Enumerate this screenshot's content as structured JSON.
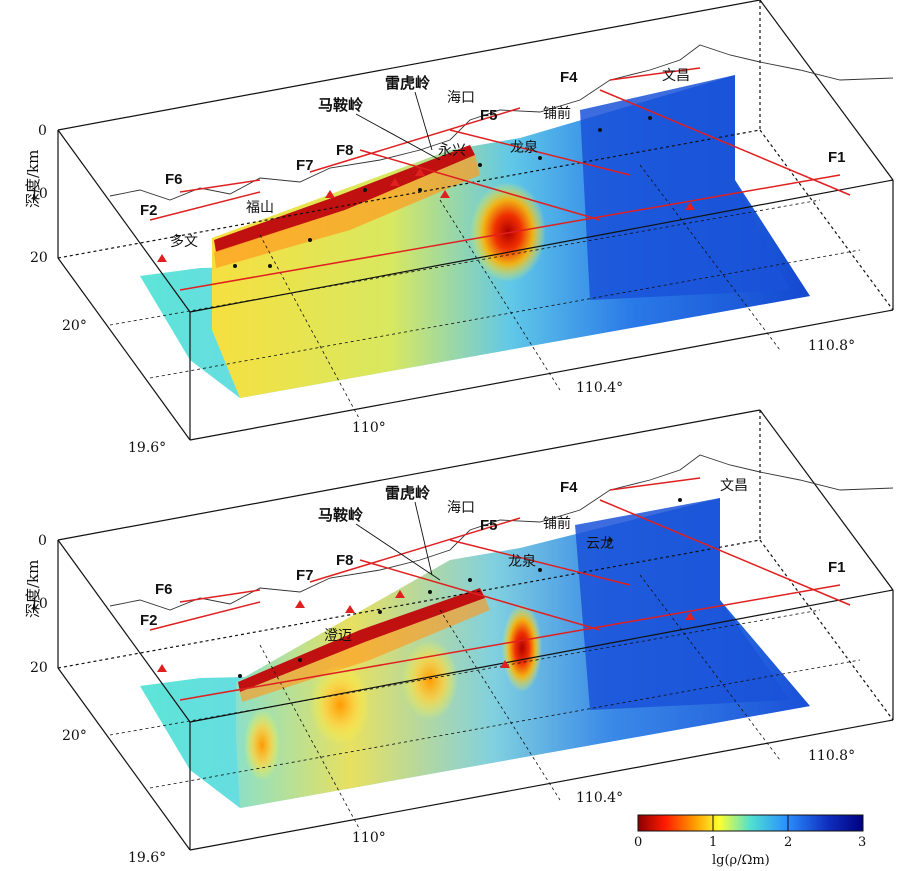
{
  "panels": [
    {
      "id": "top",
      "depth_axis_label": "深度/km",
      "depth_ticks": [
        "0",
        "10",
        "20"
      ],
      "lat_ticks": [
        "20°",
        "19.6°"
      ],
      "lon_ticks": [
        "110°",
        "110.4°",
        "110.8°"
      ],
      "faults": [
        "F1",
        "F2",
        "F4",
        "F5",
        "F6",
        "F7",
        "F8"
      ],
      "places": [
        "雷虎岭",
        "马鞍岭",
        "海口",
        "文昌",
        "福山",
        "多文",
        "永兴",
        "龙泉",
        "铺前"
      ]
    },
    {
      "id": "bottom",
      "depth_axis_label": "深度/km",
      "depth_ticks": [
        "0",
        "10",
        "20"
      ],
      "lat_ticks": [
        "20°",
        "19.6°"
      ],
      "lon_ticks": [
        "110°",
        "110.4°",
        "110.8°"
      ],
      "faults": [
        "F1",
        "F2",
        "F4",
        "F5",
        "F6",
        "F7",
        "F8"
      ],
      "places": [
        "雷虎岭",
        "马鞍岭",
        "海口",
        "文昌",
        "龙泉",
        "澄迈",
        "云龙",
        "铺前"
      ]
    }
  ],
  "colorbar": {
    "ticks": [
      "0",
      "1",
      "2",
      "3"
    ],
    "label": "lg(ρ/Ωm)",
    "colors": [
      "#8b0000",
      "#ff2000",
      "#ffa000",
      "#ffff40",
      "#40e0d0",
      "#2090ff",
      "#1030c0",
      "#000080"
    ]
  }
}
